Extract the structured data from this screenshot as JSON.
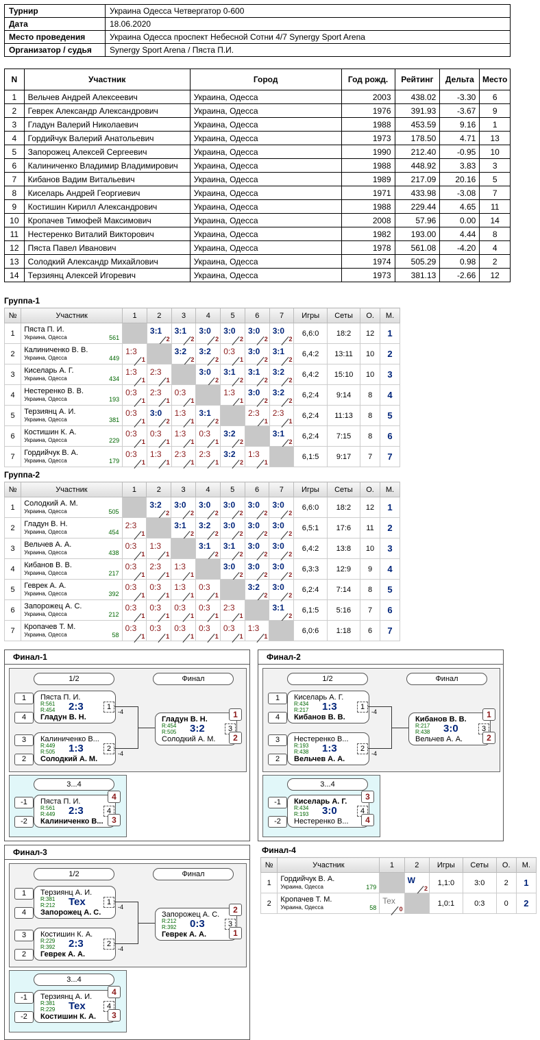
{
  "info": [
    {
      "k": "Турнир",
      "v": "Украина Одесса Четвергатор 0-600"
    },
    {
      "k": "Дата",
      "v": "18.06.2020"
    },
    {
      "k": "Место проведения",
      "v": "Украина Одесса проспект Небесной Сотни 4/7 Synergy Sport Arena"
    },
    {
      "k": "Организатор / судья",
      "v": "Synergy Sport Arena / Пяста П.И."
    }
  ],
  "plist_headers": [
    "N",
    "Участник",
    "Город",
    "Год рожд.",
    "Рейтинг",
    "Дельта",
    "Место"
  ],
  "plist": [
    [
      "1",
      "Вельчев Андрей Алексеевич",
      "Украина, Одесса",
      "2003",
      "438.02",
      "-3.30",
      "6"
    ],
    [
      "2",
      "Геврек Александр Александрович",
      "Украина, Одесса",
      "1976",
      "391.93",
      "-3.67",
      "9"
    ],
    [
      "3",
      "Гладун Валерий Николаевич",
      "Украина, Одесса",
      "1988",
      "453.59",
      "9.16",
      "1"
    ],
    [
      "4",
      "Гордийчук Валерий Анатольевич",
      "Украина, Одесса",
      "1973",
      "178.50",
      "4.71",
      "13"
    ],
    [
      "5",
      "Запорожец Алексей Сергеевич",
      "Украина, Одесса",
      "1990",
      "212.40",
      "-0.95",
      "10"
    ],
    [
      "6",
      "Калиниченко Владимир Владимирович",
      "Украина, Одесса",
      "1988",
      "448.92",
      "3.83",
      "3"
    ],
    [
      "7",
      "Кибанов Вадим Витальевич",
      "Украина, Одесса",
      "1989",
      "217.09",
      "20.16",
      "5"
    ],
    [
      "8",
      "Киселарь Андрей Георгиевич",
      "Украина, Одесса",
      "1971",
      "433.98",
      "-3.08",
      "7"
    ],
    [
      "9",
      "Костишин Кирилл Александрович",
      "Украина, Одесса",
      "1988",
      "229.44",
      "4.65",
      "11"
    ],
    [
      "10",
      "Кропачев Тимофей Максимович",
      "Украина, Одесса",
      "2008",
      "57.96",
      "0.00",
      "14"
    ],
    [
      "11",
      "Нестеренко Виталий Викторович",
      "Украина, Одесса",
      "1982",
      "193.00",
      "4.44",
      "8"
    ],
    [
      "12",
      "Пяста Павел Иванович",
      "Украина, Одесса",
      "1978",
      "561.08",
      "-4.20",
      "4"
    ],
    [
      "13",
      "Солодкий Александр Михайлович",
      "Украина, Одесса",
      "1974",
      "505.29",
      "0.98",
      "2"
    ],
    [
      "14",
      "Терзиянц Алексей Игоревич",
      "Украина, Одесса",
      "1973",
      "381.13",
      "-2.66",
      "12"
    ]
  ],
  "group_headers": [
    "№",
    "Участник",
    "1",
    "2",
    "3",
    "4",
    "5",
    "6",
    "7",
    "Игры",
    "Сеты",
    "О.",
    "М."
  ],
  "city": "Украина, Одесса",
  "groups": [
    {
      "title": "Группа-1",
      "rows": [
        {
          "n": "1",
          "name": "Пяста П. И.",
          "r": "561",
          "games": "6,6:0",
          "sets": "18:2",
          "pts": "12",
          "place": "1",
          "s": [
            "",
            "3:1|2|w",
            "3:1|2|w",
            "3:0|2|w",
            "3:0|2|w",
            "3:0|2|w",
            "3:0|2|w"
          ]
        },
        {
          "n": "2",
          "name": "Калиниченко В. В.",
          "r": "449",
          "games": "6,4:2",
          "sets": "13:11",
          "pts": "10",
          "place": "2",
          "s": [
            "1:3|1|l",
            "",
            "3:2|2|w",
            "3:2|2|w",
            "0:3|1|l",
            "3:0|2|w",
            "3:1|2|w"
          ]
        },
        {
          "n": "3",
          "name": "Киселарь А. Г.",
          "r": "434",
          "games": "6,4:2",
          "sets": "15:10",
          "pts": "10",
          "place": "3",
          "s": [
            "1:3|1|l",
            "2:3|1|l",
            "",
            "3:0|2|w",
            "3:1|2|w",
            "3:1|2|w",
            "3:2|2|w"
          ]
        },
        {
          "n": "4",
          "name": "Нестеренко В. В.",
          "r": "193",
          "games": "6,2:4",
          "sets": "9:14",
          "pts": "8",
          "place": "4",
          "s": [
            "0:3|1|l",
            "2:3|1|l",
            "0:3|1|l",
            "",
            "1:3|1|l",
            "3:0|2|w",
            "3:2|2|w"
          ]
        },
        {
          "n": "5",
          "name": "Терзиянц А. И.",
          "r": "381",
          "games": "6,2:4",
          "sets": "11:13",
          "pts": "8",
          "place": "5",
          "s": [
            "0:3|1|l",
            "3:0|2|w",
            "1:3|1|l",
            "3:1|2|w",
            "",
            "2:3|1|l",
            "2:3|1|l"
          ]
        },
        {
          "n": "6",
          "name": "Костишин К. А.",
          "r": "229",
          "games": "6,2:4",
          "sets": "7:15",
          "pts": "8",
          "place": "6",
          "s": [
            "0:3|1|l",
            "0:3|1|l",
            "1:3|1|l",
            "0:3|1|l",
            "3:2|2|w",
            "",
            "3:1|2|w"
          ]
        },
        {
          "n": "7",
          "name": "Гордийчук В. А.",
          "r": "179",
          "games": "6,1:5",
          "sets": "9:17",
          "pts": "7",
          "place": "7",
          "s": [
            "0:3|1|l",
            "1:3|1|l",
            "2:3|1|l",
            "2:3|1|l",
            "3:2|2|w",
            "1:3|1|l",
            ""
          ]
        }
      ]
    },
    {
      "title": "Группа-2",
      "rows": [
        {
          "n": "1",
          "name": "Солодкий А. М.",
          "r": "505",
          "games": "6,6:0",
          "sets": "18:2",
          "pts": "12",
          "place": "1",
          "s": [
            "",
            "3:2|2|w",
            "3:0|2|w",
            "3:0|2|w",
            "3:0|2|w",
            "3:0|2|w",
            "3:0|2|w"
          ]
        },
        {
          "n": "2",
          "name": "Гладун В. Н.",
          "r": "454",
          "games": "6,5:1",
          "sets": "17:6",
          "pts": "11",
          "place": "2",
          "s": [
            "2:3|1|l",
            "",
            "3:1|2|w",
            "3:2|2|w",
            "3:0|2|w",
            "3:0|2|w",
            "3:0|2|w"
          ]
        },
        {
          "n": "3",
          "name": "Вельчев А. А.",
          "r": "438",
          "games": "6,4:2",
          "sets": "13:8",
          "pts": "10",
          "place": "3",
          "s": [
            "0:3|1|l",
            "1:3|1|l",
            "",
            "3:1|2|w",
            "3:1|2|w",
            "3:0|2|w",
            "3:0|2|w"
          ]
        },
        {
          "n": "4",
          "name": "Кибанов В. В.",
          "r": "217",
          "games": "6,3:3",
          "sets": "12:9",
          "pts": "9",
          "place": "4",
          "s": [
            "0:3|1|l",
            "2:3|1|l",
            "1:3|1|l",
            "",
            "3:0|2|w",
            "3:0|2|w",
            "3:0|2|w"
          ]
        },
        {
          "n": "5",
          "name": "Геврек А. А.",
          "r": "392",
          "games": "6,2:4",
          "sets": "7:14",
          "pts": "8",
          "place": "5",
          "s": [
            "0:3|1|l",
            "0:3|1|l",
            "1:3|1|l",
            "0:3|1|l",
            "",
            "3:2|2|w",
            "3:0|2|w"
          ]
        },
        {
          "n": "6",
          "name": "Запорожец А. С.",
          "r": "212",
          "games": "6,1:5",
          "sets": "5:16",
          "pts": "7",
          "place": "6",
          "s": [
            "0:3|1|l",
            "0:3|1|l",
            "0:3|1|l",
            "0:3|1|l",
            "2:3|1|l",
            "",
            "3:1|2|w"
          ]
        },
        {
          "n": "7",
          "name": "Кропачев Т. М.",
          "r": "58",
          "games": "6,0:6",
          "sets": "1:18",
          "pts": "6",
          "place": "7",
          "s": [
            "0:3|1|l",
            "0:3|1|l",
            "0:3|1|l",
            "0:3|1|l",
            "0:3|1|l",
            "1:3|1|l",
            ""
          ]
        }
      ]
    }
  ],
  "finals": [
    {
      "title": "Финал-1",
      "half": "1/2",
      "final": "Финал",
      "third": "3...4",
      "m1": {
        "seedA": "1",
        "seedB": "4",
        "a": "Пяста П. И.",
        "b": "Гладун В. Н.",
        "ra": "R:561",
        "rb": "R:454",
        "sc": "2:3",
        "no": "1",
        "bold": "b"
      },
      "m2": {
        "seedA": "3",
        "seedB": "2",
        "a": "Калиниченко В...",
        "b": "Солодкий А. М.",
        "ra": "R:449",
        "rb": "R:505",
        "sc": "1:3",
        "no": "2",
        "bold": "b"
      },
      "mf": {
        "a": "Гладун В. Н.",
        "b": "Солодкий А. М.",
        "ra": "R:454",
        "rb": "R:505",
        "sc": "3:2",
        "no": "3",
        "pa": "1",
        "pb": "2",
        "bold": "a"
      },
      "m3": {
        "seedA": "-1",
        "seedB": "-2",
        "a": "Пяста П. И.",
        "b": "Калиниченко В...",
        "ra": "R:561",
        "rb": "R:449",
        "sc": "2:3",
        "no": "4",
        "pa": "4",
        "pb": "3",
        "bold": "b"
      },
      "loss": "-4"
    },
    {
      "title": "Финал-2",
      "half": "1/2",
      "final": "Финал",
      "third": "3...4",
      "m1": {
        "seedA": "1",
        "seedB": "4",
        "a": "Киселарь А. Г.",
        "b": "Кибанов В. В.",
        "ra": "R:434",
        "rb": "R:217",
        "sc": "1:3",
        "no": "1",
        "bold": "b"
      },
      "m2": {
        "seedA": "3",
        "seedB": "2",
        "a": "Нестеренко В...",
        "b": "Вельчев А. А.",
        "ra": "R:193",
        "rb": "R:438",
        "sc": "1:3",
        "no": "2",
        "bold": "b"
      },
      "mf": {
        "a": "Кибанов В. В.",
        "b": "Вельчев А. А.",
        "ra": "R:217",
        "rb": "R:438",
        "sc": "3:0",
        "no": "3",
        "pa": "1",
        "pb": "2",
        "bold": "a"
      },
      "m3": {
        "seedA": "-1",
        "seedB": "-2",
        "a": "Киселарь А. Г.",
        "b": "Нестеренко В...",
        "ra": "R:434",
        "rb": "R:193",
        "sc": "3:0",
        "no": "4",
        "pa": "3",
        "pb": "4",
        "bold": "a"
      },
      "loss": "-4"
    },
    {
      "title": "Финал-3",
      "half": "1/2",
      "final": "Финал",
      "third": "3...4",
      "m1": {
        "seedA": "1",
        "seedB": "4",
        "a": "Терзиянц А. И.",
        "b": "Запорожец А. С.",
        "ra": "R:381",
        "rb": "R:212",
        "sc": "Tex",
        "no": "1",
        "bold": "b"
      },
      "m2": {
        "seedA": "3",
        "seedB": "2",
        "a": "Костишин К. А.",
        "b": "Геврек А. А.",
        "ra": "R:229",
        "rb": "R:392",
        "sc": "2:3",
        "no": "2",
        "bold": "b"
      },
      "mf": {
        "a": "Запорожец А. С.",
        "b": "Геврек А. А.",
        "ra": "R:212",
        "rb": "R:392",
        "sc": "0:3",
        "no": "3",
        "pa": "2",
        "pb": "1",
        "bold": "b"
      },
      "m3": {
        "seedA": "-1",
        "seedB": "-2",
        "a": "Терзиянц А. И.",
        "b": "Костишин К. А.",
        "ra": "R:381",
        "rb": "R:229",
        "sc": "Tex",
        "no": "4",
        "pa": "4",
        "pb": "3",
        "bold": "b"
      },
      "loss": "-4"
    }
  ],
  "final4": {
    "title": "Финал-4",
    "headers": [
      "№",
      "Участник",
      "1",
      "2",
      "Игры",
      "Сеты",
      "О.",
      "М."
    ],
    "rows": [
      {
        "n": "1",
        "name": "Гордийчук В. А.",
        "r": "179",
        "c1": "",
        "c2": "W",
        "c2sub": "2",
        "games": "1,1:0",
        "sets": "3:0",
        "pts": "2",
        "place": "1"
      },
      {
        "n": "2",
        "name": "Кропачев Т. М.",
        "r": "58",
        "c1": "Tex",
        "c1sub": "0",
        "c2": "",
        "games": "1,0:1",
        "sets": "0:3",
        "pts": "0",
        "place": "2"
      }
    ]
  }
}
